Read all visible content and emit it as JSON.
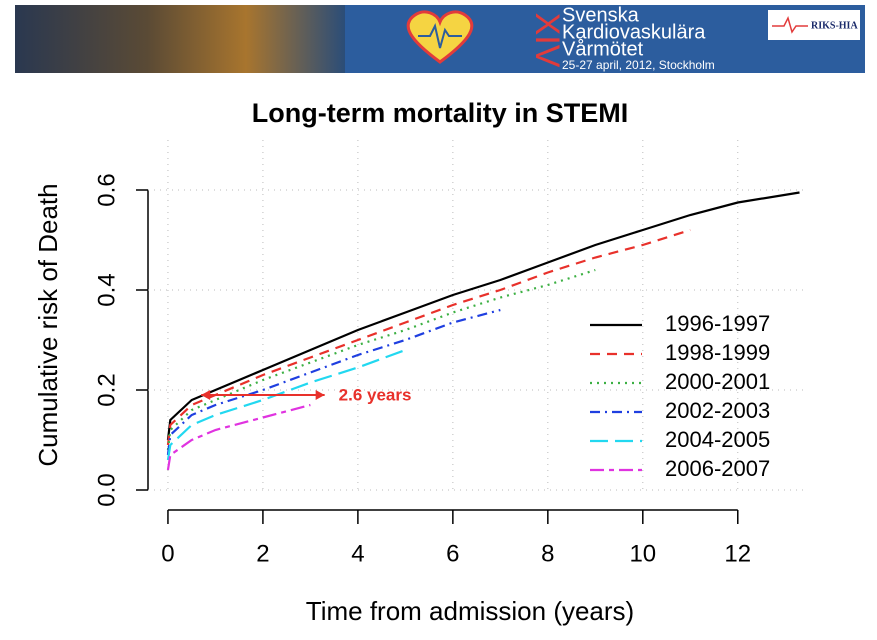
{
  "banner": {
    "numeral": "XIV",
    "line1": "Svenska",
    "line2": "Kardiovaskulära",
    "line3": "Vårmötet",
    "line4": "25-27 april, 2012, Stockholm",
    "badge": "RIKS-HIA"
  },
  "chart_data": {
    "type": "line",
    "title": "Long-term mortality in STEMI",
    "x_label": "Time from admission (years)",
    "y_label": "Cumulative risk of Death",
    "x": [
      0,
      0.05,
      0.5,
      1,
      2,
      3,
      4,
      5,
      6,
      7,
      8,
      9,
      10,
      11,
      12,
      13.3
    ],
    "series": [
      {
        "name": "1996-1997",
        "color": "#000000",
        "dash": "solid",
        "values": [
          0.1,
          0.14,
          0.18,
          0.2,
          0.24,
          0.28,
          0.32,
          0.355,
          0.39,
          0.42,
          0.455,
          0.49,
          0.52,
          0.55,
          0.575,
          0.595
        ]
      },
      {
        "name": "1998-1999",
        "color": "#e8312b",
        "dash": "dashed",
        "values": [
          0.09,
          0.13,
          0.17,
          0.19,
          0.23,
          0.265,
          0.3,
          0.335,
          0.37,
          0.4,
          0.435,
          0.465,
          0.49,
          0.52,
          null,
          null
        ]
      },
      {
        "name": "2000-2001",
        "color": "#3cb043",
        "dash": "dotted",
        "values": [
          0.08,
          0.12,
          0.16,
          0.18,
          0.22,
          0.255,
          0.29,
          0.32,
          0.355,
          0.385,
          0.41,
          0.44,
          null,
          null,
          null,
          null
        ]
      },
      {
        "name": "2002-2003",
        "color": "#1f3fe0",
        "dash": "dashdot",
        "values": [
          0.07,
          0.11,
          0.15,
          0.17,
          0.2,
          0.235,
          0.27,
          0.3,
          0.335,
          0.36,
          null,
          null,
          null,
          null,
          null,
          null
        ]
      },
      {
        "name": "2004-2005",
        "color": "#22d8f0",
        "dash": "longdash",
        "values": [
          0.06,
          0.09,
          0.13,
          0.15,
          0.18,
          0.215,
          0.245,
          0.28,
          null,
          null,
          null,
          null,
          null,
          null,
          null,
          null
        ]
      },
      {
        "name": "2006-2007",
        "color": "#e033e0",
        "dash": "twodash",
        "values": [
          0.04,
          0.07,
          0.1,
          0.12,
          0.145,
          0.17,
          null,
          null,
          null,
          null,
          null,
          null,
          null,
          null,
          null,
          null
        ]
      }
    ],
    "xlim": [
      -0.42,
      13.9
    ],
    "ylim": [
      -0.04,
      0.7
    ],
    "xticks": [
      0,
      2,
      4,
      6,
      8,
      10,
      12
    ],
    "yticks": [
      {
        "value": 0,
        "label": "0.0"
      },
      0.2,
      0.4,
      0.6
    ],
    "grid": true,
    "legend": "lower right",
    "annotation": {
      "text": "2.6 years",
      "x_start": 0.7,
      "x_end": 3.3,
      "y": 0.19,
      "color": "#e8312b"
    }
  }
}
